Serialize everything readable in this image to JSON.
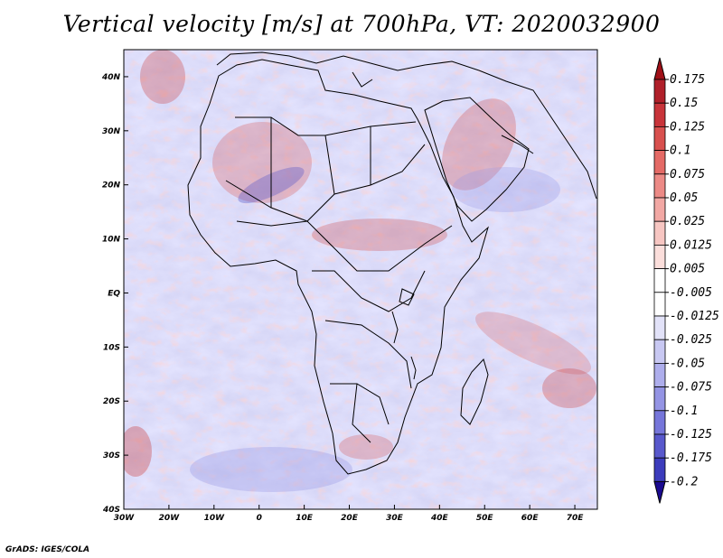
{
  "title": "Vertical velocity [m/s] at 700hPa, VT: 2020032900",
  "credit": "GrADS: IGES/COLA",
  "map": {
    "lon_range": [
      -30,
      75
    ],
    "lat_range": [
      -40,
      45
    ],
    "lon_ticks": [
      {
        "value": -30,
        "label": "30W"
      },
      {
        "value": -20,
        "label": "20W"
      },
      {
        "value": -10,
        "label": "10W"
      },
      {
        "value": 0,
        "label": "0"
      },
      {
        "value": 10,
        "label": "10E"
      },
      {
        "value": 20,
        "label": "20E"
      },
      {
        "value": 30,
        "label": "30E"
      },
      {
        "value": 40,
        "label": "40E"
      },
      {
        "value": 50,
        "label": "50E"
      },
      {
        "value": 60,
        "label": "60E"
      },
      {
        "value": 70,
        "label": "70E"
      }
    ],
    "lat_ticks": [
      {
        "value": 40,
        "label": "40N"
      },
      {
        "value": 30,
        "label": "30N"
      },
      {
        "value": 20,
        "label": "20N"
      },
      {
        "value": 10,
        "label": "10N"
      },
      {
        "value": 0,
        "label": "EQ"
      },
      {
        "value": -10,
        "label": "10S"
      },
      {
        "value": -20,
        "label": "20S"
      },
      {
        "value": -30,
        "label": "30S"
      },
      {
        "value": -40,
        "label": "40S"
      }
    ]
  },
  "colorbar": {
    "top_color": "#a01018",
    "bottom_color": "#1a0a90",
    "levels": [
      {
        "label": "0.175",
        "color": "#b0202a"
      },
      {
        "label": "0.15",
        "color": "#c8343a"
      },
      {
        "label": "0.125",
        "color": "#d8504e"
      },
      {
        "label": "0.1",
        "color": "#e46a66"
      },
      {
        "label": "0.075",
        "color": "#ec8a86"
      },
      {
        "label": "0.05",
        "color": "#f2a8a4"
      },
      {
        "label": "0.025",
        "color": "#f7c6c2"
      },
      {
        "label": "0.0125",
        "color": "#fbdedb"
      },
      {
        "label": "0.005",
        "color": "#ffffff"
      },
      {
        "label": "-0.005",
        "color": "#ffffff"
      },
      {
        "label": "-0.0125",
        "color": "#e2e2f8"
      },
      {
        "label": "-0.025",
        "color": "#c8c8f2"
      },
      {
        "label": "-0.05",
        "color": "#aeaeec"
      },
      {
        "label": "-0.075",
        "color": "#9494e4"
      },
      {
        "label": "-0.1",
        "color": "#7676da"
      },
      {
        "label": "-0.125",
        "color": "#5858cc"
      },
      {
        "label": "-0.175",
        "color": "#3c3cbc"
      },
      {
        "label": "-0.2",
        "color": "#2a22a6"
      }
    ]
  }
}
